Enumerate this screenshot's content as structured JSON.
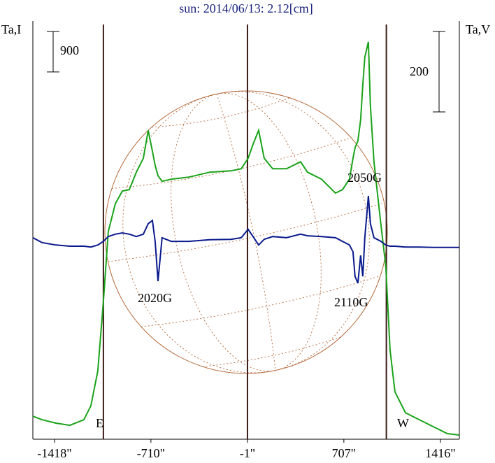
{
  "chart_data": {
    "type": "line",
    "title": "sun: 2014/06/13: 2.12[cm]",
    "ylabel": "Ta,I",
    "y2label": "Ta,V",
    "x": [
      -1577,
      -1510,
      -1408,
      -1305,
      -1202,
      -1151,
      -1100,
      -1059,
      -1023,
      -971,
      -920,
      -869,
      -817,
      -766,
      -730,
      -699,
      -679,
      -658,
      -628,
      -561,
      -432,
      -278,
      -124,
      -47,
      4,
      40,
      81,
      122,
      184,
      286,
      389,
      440,
      543,
      645,
      697,
      748,
      774,
      789,
      810,
      830,
      846,
      861,
      887,
      902,
      928,
      979,
      1015,
      1046,
      1082,
      1159,
      1261,
      1364,
      1467,
      1554
    ],
    "series": [
      {
        "name": "I",
        "color": "#1aa31a",
        "axis": "y",
        "values": [
          512,
          434,
          357,
          310,
          434,
          744,
          1519,
          3069,
          4619,
          5239,
          5518,
          5549,
          5937,
          6247,
          6867,
          6402,
          6092,
          5859,
          5735,
          5782,
          5828,
          5937,
          5968,
          6014,
          6247,
          6557,
          6867,
          6247,
          6014,
          6014,
          6169,
          5937,
          5782,
          5472,
          5549,
          5782,
          6247,
          6479,
          6634,
          7099,
          7874,
          8494,
          8835,
          7409,
          6169,
          4774,
          3844,
          1984,
          1054,
          589,
          434,
          279,
          124,
          93
        ]
      },
      {
        "name": "V",
        "color": "#0a1a8c",
        "axis": "y2",
        "values": [
          21,
          9,
          3,
          0,
          0,
          -2,
          3,
          12,
          24,
          30,
          33,
          30,
          24,
          30,
          56,
          64,
          12,
          -87,
          21,
          12,
          12,
          16,
          17,
          21,
          42,
          24,
          3,
          17,
          24,
          21,
          30,
          26,
          24,
          21,
          12,
          3,
          -14,
          -75,
          -92,
          -23,
          -75,
          21,
          125,
          56,
          21,
          12,
          3,
          0,
          0,
          -2,
          -2,
          -3,
          -3,
          -3
        ]
      }
    ],
    "xlim": [
      -1577,
      1555
    ],
    "xticks": [
      {
        "value": -1418,
        "label": "-1418\""
      },
      {
        "value": -710,
        "label": "-710\""
      },
      {
        "value": -1,
        "label": "-1\""
      },
      {
        "value": 707,
        "label": "707\""
      },
      {
        "value": 1416,
        "label": "1416\""
      }
    ],
    "ylim": [
      0,
      9300
    ],
    "y2lim": [
      -480,
      560
    ],
    "vlines": [
      -1059,
      -1,
      1019
    ],
    "scale_bars": [
      {
        "axis": "y",
        "value": 900
      },
      {
        "axis": "y2",
        "value": 200
      }
    ],
    "annotations": [
      {
        "text": "E"
      },
      {
        "text": "W"
      },
      {
        "text": "2020G"
      },
      {
        "text": "2050G"
      },
      {
        "text": "2110G"
      }
    ]
  }
}
